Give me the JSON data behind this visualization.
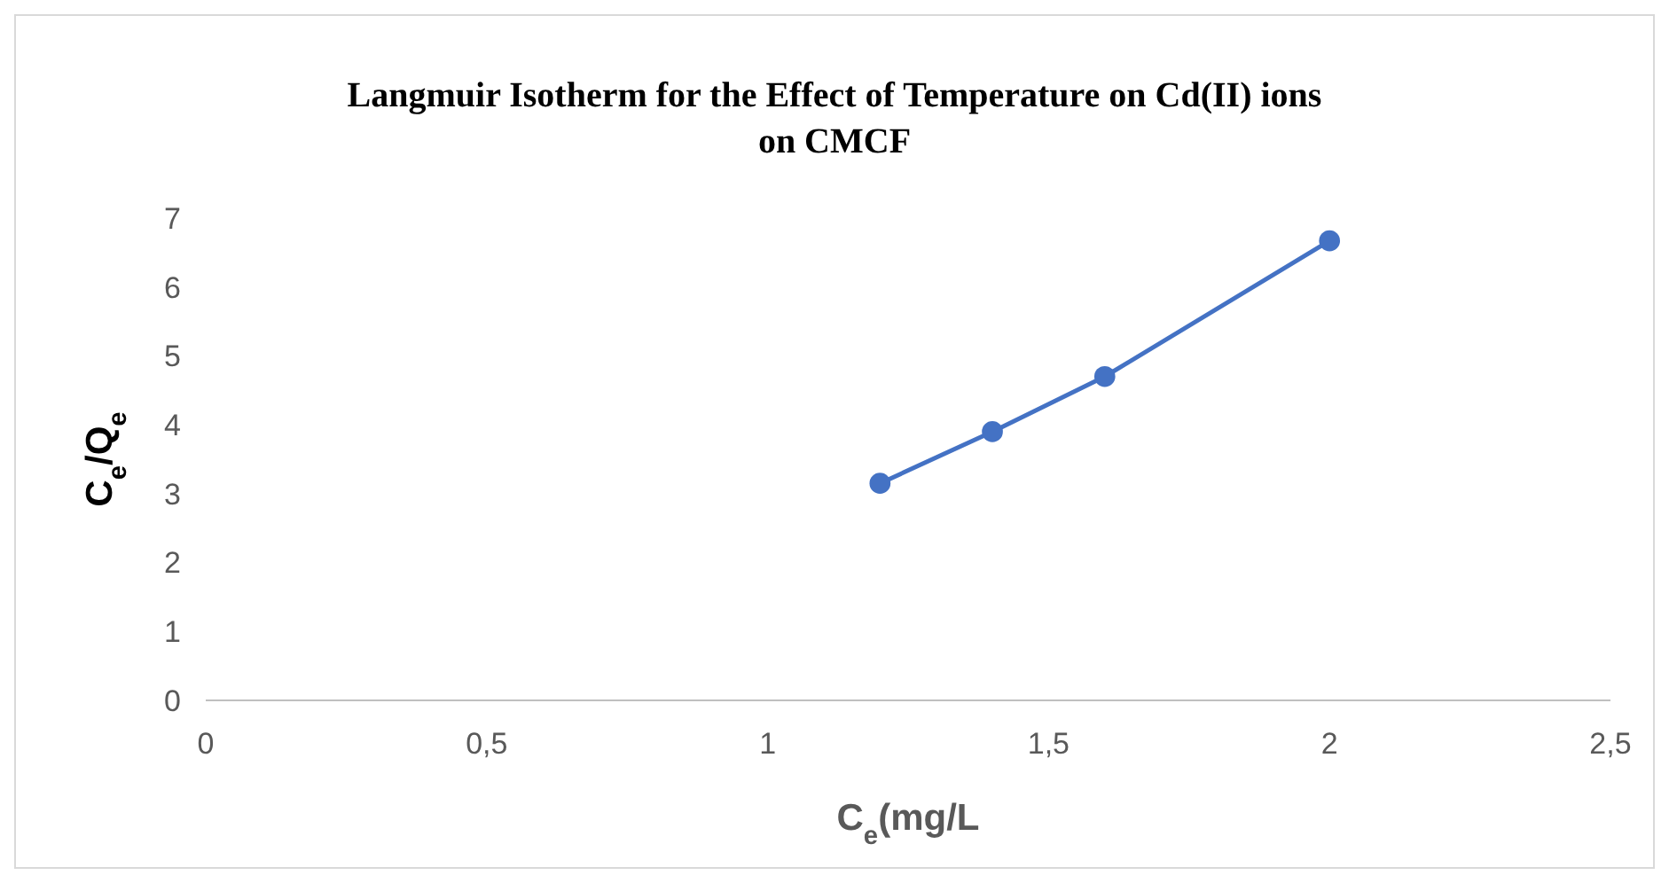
{
  "chart_data": {
    "type": "line",
    "title": "Langmuir Isotherm for the Effect of Temperature on Cd(II) ions on CMCF",
    "xlabel": "C$_{e}$(mg/L",
    "ylabel": "C$_{e}$/Q$_{e}$",
    "series": [
      {
        "color": "#4472c4",
        "x": [
          1.2,
          1.4,
          1.6,
          2.0
        ],
        "values": [
          3.15,
          3.9,
          4.7,
          6.67
        ]
      }
    ],
    "xlim": [
      0,
      2.5
    ],
    "xticks": [
      0,
      {
        "value": 0.5,
        "label": "0,5"
      },
      1,
      {
        "value": 1.5,
        "label": "1,5"
      },
      2,
      {
        "value": 2.5,
        "label": "2,5"
      }
    ],
    "ylim": [
      0,
      7
    ],
    "yticks": [
      0,
      1,
      2,
      3,
      4,
      5,
      6,
      7
    ],
    "grid": false,
    "marker": "circle",
    "line_style": "solid"
  }
}
